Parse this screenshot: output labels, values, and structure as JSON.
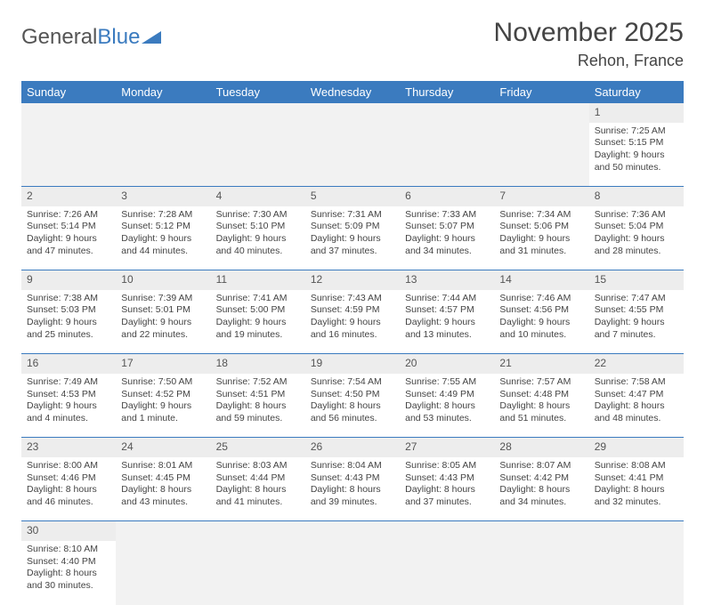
{
  "logo": {
    "part1": "General",
    "part2": "Blue"
  },
  "month_title": "November 2025",
  "location": "Rehon, France",
  "colors": {
    "header_bg": "#3b7bbf",
    "header_text": "#ffffff",
    "daynum_bg": "#ededed",
    "empty_bg": "#f2f2f2",
    "text": "#444444",
    "border": "#3b7bbf",
    "page_bg": "#ffffff"
  },
  "typography": {
    "title_fontsize": 30,
    "location_fontsize": 18,
    "header_fontsize": 13,
    "daynum_fontsize": 12,
    "cell_fontsize": 10.5
  },
  "weekdays": [
    "Sunday",
    "Monday",
    "Tuesday",
    "Wednesday",
    "Thursday",
    "Friday",
    "Saturday"
  ],
  "weeks": [
    {
      "nums": [
        "",
        "",
        "",
        "",
        "",
        "",
        "1"
      ],
      "cells": [
        null,
        null,
        null,
        null,
        null,
        null,
        {
          "sunrise": "Sunrise: 7:25 AM",
          "sunset": "Sunset: 5:15 PM",
          "day1": "Daylight: 9 hours",
          "day2": "and 50 minutes."
        }
      ]
    },
    {
      "nums": [
        "2",
        "3",
        "4",
        "5",
        "6",
        "7",
        "8"
      ],
      "cells": [
        {
          "sunrise": "Sunrise: 7:26 AM",
          "sunset": "Sunset: 5:14 PM",
          "day1": "Daylight: 9 hours",
          "day2": "and 47 minutes."
        },
        {
          "sunrise": "Sunrise: 7:28 AM",
          "sunset": "Sunset: 5:12 PM",
          "day1": "Daylight: 9 hours",
          "day2": "and 44 minutes."
        },
        {
          "sunrise": "Sunrise: 7:30 AM",
          "sunset": "Sunset: 5:10 PM",
          "day1": "Daylight: 9 hours",
          "day2": "and 40 minutes."
        },
        {
          "sunrise": "Sunrise: 7:31 AM",
          "sunset": "Sunset: 5:09 PM",
          "day1": "Daylight: 9 hours",
          "day2": "and 37 minutes."
        },
        {
          "sunrise": "Sunrise: 7:33 AM",
          "sunset": "Sunset: 5:07 PM",
          "day1": "Daylight: 9 hours",
          "day2": "and 34 minutes."
        },
        {
          "sunrise": "Sunrise: 7:34 AM",
          "sunset": "Sunset: 5:06 PM",
          "day1": "Daylight: 9 hours",
          "day2": "and 31 minutes."
        },
        {
          "sunrise": "Sunrise: 7:36 AM",
          "sunset": "Sunset: 5:04 PM",
          "day1": "Daylight: 9 hours",
          "day2": "and 28 minutes."
        }
      ]
    },
    {
      "nums": [
        "9",
        "10",
        "11",
        "12",
        "13",
        "14",
        "15"
      ],
      "cells": [
        {
          "sunrise": "Sunrise: 7:38 AM",
          "sunset": "Sunset: 5:03 PM",
          "day1": "Daylight: 9 hours",
          "day2": "and 25 minutes."
        },
        {
          "sunrise": "Sunrise: 7:39 AM",
          "sunset": "Sunset: 5:01 PM",
          "day1": "Daylight: 9 hours",
          "day2": "and 22 minutes."
        },
        {
          "sunrise": "Sunrise: 7:41 AM",
          "sunset": "Sunset: 5:00 PM",
          "day1": "Daylight: 9 hours",
          "day2": "and 19 minutes."
        },
        {
          "sunrise": "Sunrise: 7:43 AM",
          "sunset": "Sunset: 4:59 PM",
          "day1": "Daylight: 9 hours",
          "day2": "and 16 minutes."
        },
        {
          "sunrise": "Sunrise: 7:44 AM",
          "sunset": "Sunset: 4:57 PM",
          "day1": "Daylight: 9 hours",
          "day2": "and 13 minutes."
        },
        {
          "sunrise": "Sunrise: 7:46 AM",
          "sunset": "Sunset: 4:56 PM",
          "day1": "Daylight: 9 hours",
          "day2": "and 10 minutes."
        },
        {
          "sunrise": "Sunrise: 7:47 AM",
          "sunset": "Sunset: 4:55 PM",
          "day1": "Daylight: 9 hours",
          "day2": "and 7 minutes."
        }
      ]
    },
    {
      "nums": [
        "16",
        "17",
        "18",
        "19",
        "20",
        "21",
        "22"
      ],
      "cells": [
        {
          "sunrise": "Sunrise: 7:49 AM",
          "sunset": "Sunset: 4:53 PM",
          "day1": "Daylight: 9 hours",
          "day2": "and 4 minutes."
        },
        {
          "sunrise": "Sunrise: 7:50 AM",
          "sunset": "Sunset: 4:52 PM",
          "day1": "Daylight: 9 hours",
          "day2": "and 1 minute."
        },
        {
          "sunrise": "Sunrise: 7:52 AM",
          "sunset": "Sunset: 4:51 PM",
          "day1": "Daylight: 8 hours",
          "day2": "and 59 minutes."
        },
        {
          "sunrise": "Sunrise: 7:54 AM",
          "sunset": "Sunset: 4:50 PM",
          "day1": "Daylight: 8 hours",
          "day2": "and 56 minutes."
        },
        {
          "sunrise": "Sunrise: 7:55 AM",
          "sunset": "Sunset: 4:49 PM",
          "day1": "Daylight: 8 hours",
          "day2": "and 53 minutes."
        },
        {
          "sunrise": "Sunrise: 7:57 AM",
          "sunset": "Sunset: 4:48 PM",
          "day1": "Daylight: 8 hours",
          "day2": "and 51 minutes."
        },
        {
          "sunrise": "Sunrise: 7:58 AM",
          "sunset": "Sunset: 4:47 PM",
          "day1": "Daylight: 8 hours",
          "day2": "and 48 minutes."
        }
      ]
    },
    {
      "nums": [
        "23",
        "24",
        "25",
        "26",
        "27",
        "28",
        "29"
      ],
      "cells": [
        {
          "sunrise": "Sunrise: 8:00 AM",
          "sunset": "Sunset: 4:46 PM",
          "day1": "Daylight: 8 hours",
          "day2": "and 46 minutes."
        },
        {
          "sunrise": "Sunrise: 8:01 AM",
          "sunset": "Sunset: 4:45 PM",
          "day1": "Daylight: 8 hours",
          "day2": "and 43 minutes."
        },
        {
          "sunrise": "Sunrise: 8:03 AM",
          "sunset": "Sunset: 4:44 PM",
          "day1": "Daylight: 8 hours",
          "day2": "and 41 minutes."
        },
        {
          "sunrise": "Sunrise: 8:04 AM",
          "sunset": "Sunset: 4:43 PM",
          "day1": "Daylight: 8 hours",
          "day2": "and 39 minutes."
        },
        {
          "sunrise": "Sunrise: 8:05 AM",
          "sunset": "Sunset: 4:43 PM",
          "day1": "Daylight: 8 hours",
          "day2": "and 37 minutes."
        },
        {
          "sunrise": "Sunrise: 8:07 AM",
          "sunset": "Sunset: 4:42 PM",
          "day1": "Daylight: 8 hours",
          "day2": "and 34 minutes."
        },
        {
          "sunrise": "Sunrise: 8:08 AM",
          "sunset": "Sunset: 4:41 PM",
          "day1": "Daylight: 8 hours",
          "day2": "and 32 minutes."
        }
      ]
    },
    {
      "nums": [
        "30",
        "",
        "",
        "",
        "",
        "",
        ""
      ],
      "cells": [
        {
          "sunrise": "Sunrise: 8:10 AM",
          "sunset": "Sunset: 4:40 PM",
          "day1": "Daylight: 8 hours",
          "day2": "and 30 minutes."
        },
        null,
        null,
        null,
        null,
        null,
        null
      ]
    }
  ]
}
